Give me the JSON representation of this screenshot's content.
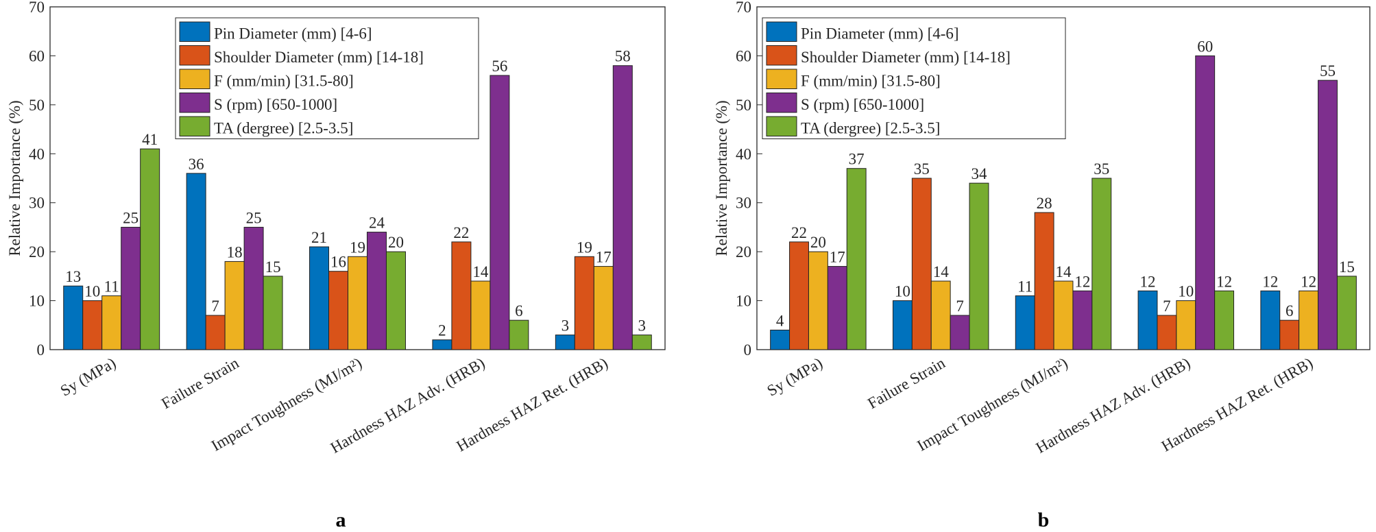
{
  "chart_data": [
    {
      "type": "bar",
      "panel_label": "a",
      "ylabel": "Relative Importance (%)",
      "categories": [
        "Sy (MPa)",
        "Failure Strain",
        "Impact Toughness (MJ/m²)",
        "Hardness HAZ Adv. (HRB)",
        "Hardness HAZ Ret. (HRB)"
      ],
      "series": [
        {
          "name": "Pin Diameter (mm) [4-6]",
          "color": "#0072BD",
          "values": [
            13,
            36,
            21,
            2,
            3
          ]
        },
        {
          "name": "Shoulder Diameter (mm) [14-18]",
          "color": "#D95319",
          "values": [
            10,
            7,
            16,
            22,
            19
          ]
        },
        {
          "name": "F (mm/min) [31.5-80]",
          "color": "#EDB120",
          "values": [
            11,
            18,
            19,
            14,
            17
          ]
        },
        {
          "name": "S (rpm) [650-1000]",
          "color": "#7E2F8E",
          "values": [
            25,
            25,
            24,
            56,
            58
          ]
        },
        {
          "name": "TA (dergree) [2.5-3.5]",
          "color": "#77AC30",
          "values": [
            41,
            15,
            20,
            6,
            3
          ]
        }
      ],
      "ylim": [
        0,
        70
      ],
      "yticks": [
        0,
        10,
        20,
        30,
        40,
        50,
        60,
        70
      ],
      "legend": "top"
    },
    {
      "type": "bar",
      "panel_label": "b",
      "ylabel": "Relative Importance (%)",
      "categories": [
        "Sy (MPa)",
        "Failure Strain",
        "Impact Toughness (MJ/m²)",
        "Hardness HAZ Adv. (HRB)",
        "Hardness HAZ Ret. (HRB)"
      ],
      "series": [
        {
          "name": "Pin Diameter (mm) [4-6]",
          "color": "#0072BD",
          "values": [
            4,
            10,
            11,
            12,
            12
          ]
        },
        {
          "name": "Shoulder Diameter (mm) [14-18]",
          "color": "#D95319",
          "values": [
            22,
            35,
            28,
            7,
            6
          ]
        },
        {
          "name": "F (mm/min) [31.5-80]",
          "color": "#EDB120",
          "values": [
            20,
            14,
            14,
            10,
            12
          ]
        },
        {
          "name": "S (rpm) [650-1000]",
          "color": "#7E2F8E",
          "values": [
            17,
            7,
            12,
            60,
            55
          ]
        },
        {
          "name": "TA (dergree) [2.5-3.5]",
          "color": "#77AC30",
          "values": [
            37,
            34,
            35,
            12,
            15
          ]
        }
      ],
      "ylim": [
        0,
        70
      ],
      "yticks": [
        0,
        10,
        20,
        30,
        40,
        50,
        60,
        70
      ],
      "legend": "top"
    }
  ]
}
